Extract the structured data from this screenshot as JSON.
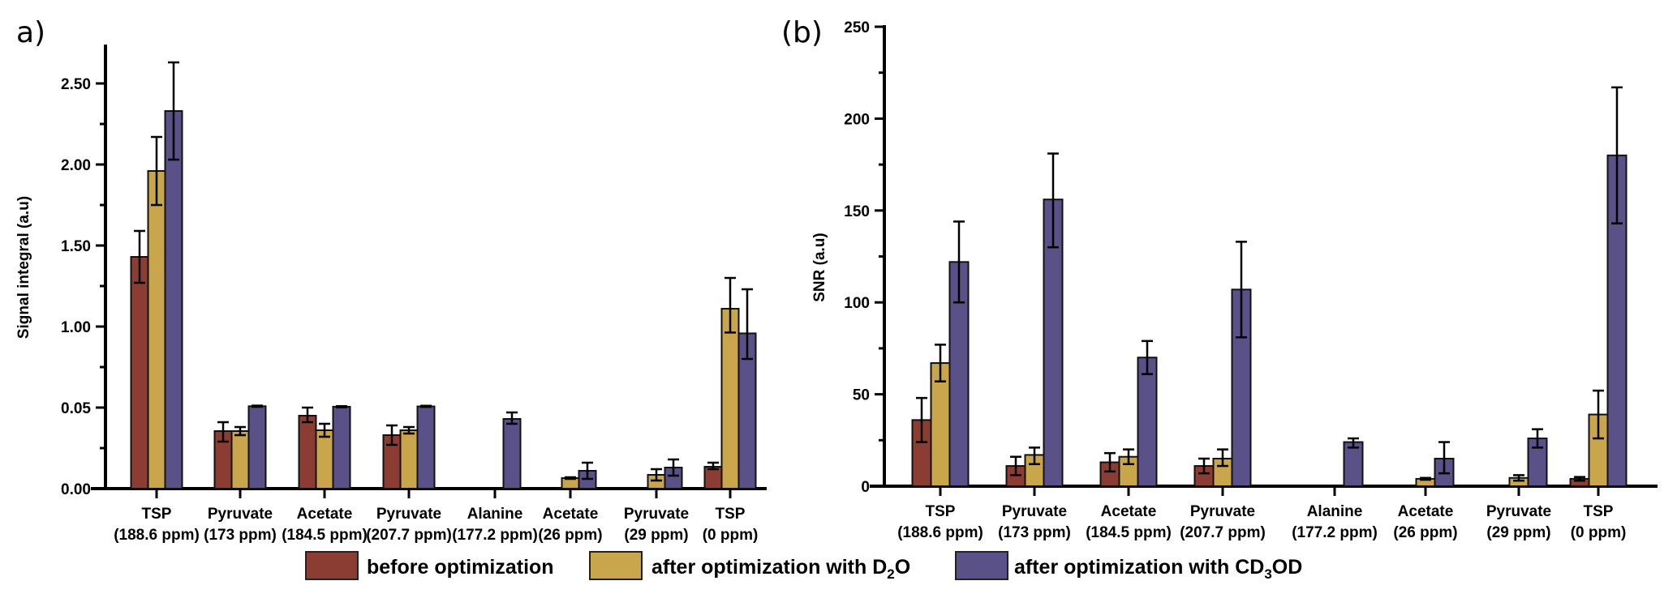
{
  "chart_data": [
    {
      "type": "bar",
      "panel_label": "a)",
      "title": "",
      "xlabel": "",
      "ylabel": "Signal integral (a.u)",
      "y_ticks": [
        "0.00",
        "0.05",
        "1.00",
        "1.50",
        "2.00",
        "2.50"
      ],
      "y_tick_values": [
        0.0,
        0.05,
        1.0,
        1.5,
        2.0,
        2.5
      ],
      "y_axis_note": "broken/non-linear axis: labelled ticks equally spaced",
      "ylim_top": 2.77,
      "grid": false,
      "categories": [
        [
          "TSP",
          "(188.6 ppm)"
        ],
        [
          "Pyruvate",
          "(173 ppm)"
        ],
        [
          "Acetate",
          "(184.5 ppm)"
        ],
        [
          "Pyruvate",
          "(207.7 ppm)"
        ],
        [
          "Alanine",
          "(177.2 ppm)"
        ],
        [
          "Acetate",
          "(26 ppm)"
        ],
        [
          "Pyruvate",
          "(29 ppm)"
        ],
        [
          "TSP",
          "(0 ppm)"
        ]
      ],
      "series": [
        {
          "name": "before optimization",
          "values": [
            1.43,
            0.0355,
            0.045,
            0.033,
            null,
            null,
            null,
            0.0135
          ],
          "err_low": [
            1.27,
            0.029,
            0.041,
            0.027,
            null,
            null,
            null,
            0.012
          ],
          "err_high": [
            1.59,
            0.041,
            0.05,
            0.039,
            null,
            null,
            null,
            0.016
          ]
        },
        {
          "name": "after optimization with D2O",
          "values": [
            1.96,
            0.0355,
            0.036,
            0.036,
            null,
            0.0065,
            0.0085,
            1.11
          ],
          "err_low": [
            1.75,
            0.033,
            0.032,
            0.034,
            null,
            0.006,
            0.005,
            0.93
          ],
          "err_high": [
            2.17,
            0.038,
            0.04,
            0.038,
            null,
            0.007,
            0.012,
            1.3
          ]
        },
        {
          "name": "after optimization with CD3OD",
          "values": [
            2.33,
            0.066,
            0.06,
            0.064,
            0.043,
            0.011,
            0.013,
            0.92
          ],
          "err_low": [
            2.03,
            0.059,
            0.053,
            0.058,
            0.04,
            0.006,
            0.008,
            0.62
          ],
          "err_high": [
            2.63,
            0.073,
            0.067,
            0.071,
            0.047,
            0.016,
            0.018,
            1.23
          ]
        }
      ]
    },
    {
      "type": "bar",
      "panel_label": "(b)",
      "title": "",
      "xlabel": "",
      "ylabel": "SNR (a.u)",
      "y_ticks": [
        "0",
        "50",
        "100",
        "150",
        "200",
        "250"
      ],
      "y_tick_values": [
        0,
        50,
        100,
        150,
        200,
        250
      ],
      "ylim": [
        0,
        250
      ],
      "grid": false,
      "categories": [
        [
          "TSP",
          "(188.6 ppm)"
        ],
        [
          "Pyruvate",
          "(173 ppm)"
        ],
        [
          "Acetate",
          "(184.5 ppm)"
        ],
        [
          "Pyruvate",
          "(207.7 ppm)"
        ],
        [
          "Alanine",
          "(177.2 ppm)"
        ],
        [
          "Acetate",
          "(26 ppm)"
        ],
        [
          "Pyruvate",
          "(29 ppm)"
        ],
        [
          "TSP",
          "(0 ppm)"
        ]
      ],
      "series": [
        {
          "name": "before optimization",
          "values": [
            36,
            11,
            13,
            11,
            null,
            null,
            null,
            4
          ],
          "err_low": [
            24,
            6,
            8,
            7,
            null,
            null,
            null,
            3
          ],
          "err_high": [
            48,
            16,
            18,
            15,
            null,
            null,
            null,
            5
          ]
        },
        {
          "name": "after optimization with D2O",
          "values": [
            67,
            17,
            16,
            15,
            null,
            4,
            4.5,
            39
          ],
          "err_low": [
            57,
            12,
            12,
            11,
            null,
            3.5,
            3,
            26
          ],
          "err_high": [
            77,
            21,
            20,
            20,
            null,
            4.5,
            6,
            52
          ]
        },
        {
          "name": "after optimization with CD3OD",
          "values": [
            122,
            156,
            70,
            107,
            24,
            15,
            26,
            180
          ],
          "err_low": [
            100,
            130,
            61,
            81,
            21,
            7,
            21,
            143
          ],
          "err_high": [
            144,
            181,
            79,
            133,
            26,
            24,
            31,
            217
          ]
        }
      ]
    }
  ],
  "legend": {
    "placement": "bottom-center",
    "items": [
      {
        "label": "before optimization",
        "color": "#8b3d34"
      },
      {
        "label_main": "after optimization with D",
        "label_sub": "2",
        "label_tail": "O",
        "color": "#c9a54c"
      },
      {
        "label_main": "after optimization with CD",
        "label_sub": "3",
        "label_tail": "OD",
        "color": "#5b5189"
      }
    ]
  },
  "colors": {
    "before": "#8b3d34",
    "d2o": "#c9a54c",
    "cd3od": "#5b5189"
  }
}
